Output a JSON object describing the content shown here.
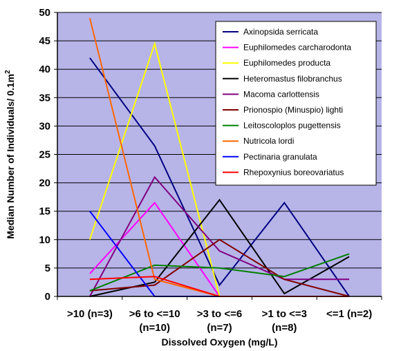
{
  "chart_data": {
    "type": "line",
    "title": "",
    "xlabel": "Dissolved Oxygen (mg/L)",
    "ylabel": "Median Number of Individuals/ 0.1m",
    "ylabel_superscript": "2",
    "categories": [
      [
        ">10 (n=3)"
      ],
      [
        ">6 to <=10",
        "(n=10)"
      ],
      [
        ">3 to <=6",
        "(n=7)"
      ],
      [
        ">1 to <=3",
        "(n=8)"
      ],
      [
        "<=1 (n=2)"
      ]
    ],
    "ylim": [
      0,
      50
    ],
    "yticks": [
      0,
      5,
      10,
      15,
      20,
      25,
      30,
      35,
      40,
      45,
      50
    ],
    "grid": "horizontal",
    "plot_background": "#b7b4e8",
    "legend_position": "top-right",
    "series": [
      {
        "name": "Axinopsida serricata",
        "color": "#000080",
        "values": [
          42,
          26.5,
          2,
          16.5,
          0
        ]
      },
      {
        "name": "Euphilomedes carcharodonta",
        "color": "#ff00ff",
        "values": [
          4,
          16.5,
          0,
          0,
          0
        ]
      },
      {
        "name": "Euphilomedes producta",
        "color": "#ffff00",
        "values": [
          10,
          44.5,
          0,
          0,
          0
        ]
      },
      {
        "name": "Heteromastus filobranchus",
        "color": "#000000",
        "values": [
          0,
          2.5,
          17,
          0.5,
          7
        ]
      },
      {
        "name": "Macoma carlottensis",
        "color": "#800080",
        "values": [
          0,
          21,
          8,
          3,
          3
        ]
      },
      {
        "name": "Prionospio (Minuspio) lighti",
        "color": "#800000",
        "values": [
          1,
          2,
          10,
          3,
          0
        ]
      },
      {
        "name": "Leitoscoloplos pugettensis",
        "color": "#008000",
        "values": [
          1,
          5.5,
          5,
          3.5,
          7.5
        ]
      },
      {
        "name": "Nutricola lordi",
        "color": "#ff6600",
        "values": [
          49,
          3,
          0,
          0,
          0
        ]
      },
      {
        "name": "Pectinaria granulata",
        "color": "#0000ff",
        "values": [
          15,
          0,
          0,
          0,
          0
        ]
      },
      {
        "name": "Rhepoxynius boreovariatus",
        "color": "#ff0000",
        "values": [
          3,
          3.5,
          0,
          0,
          0
        ]
      }
    ]
  }
}
